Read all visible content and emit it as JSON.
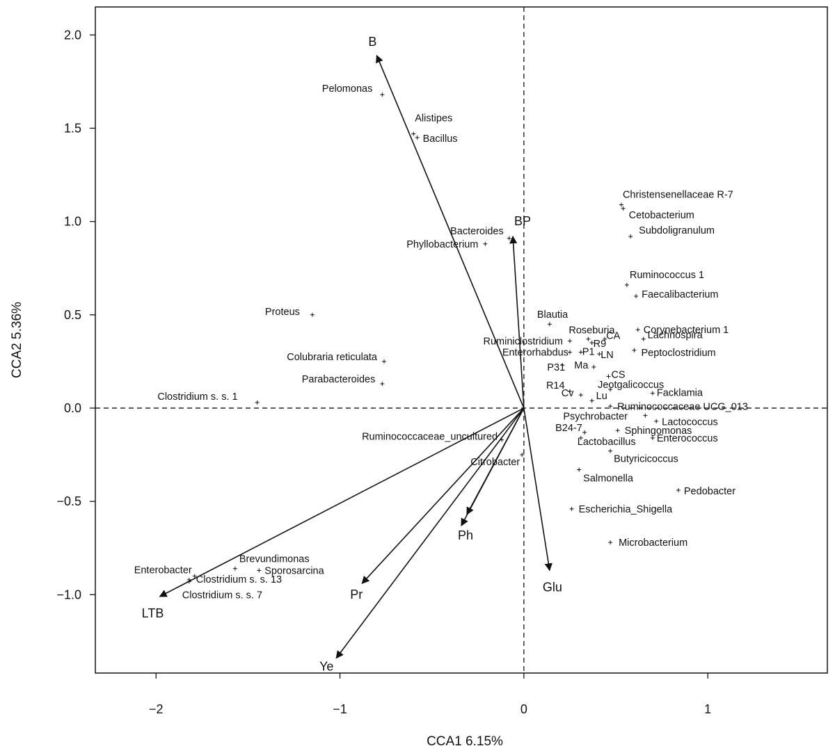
{
  "chart_data": {
    "type": "scatter",
    "title": "",
    "xlabel": "CCA1  6.15%",
    "ylabel": "CCA2  5.36%",
    "xlim": [
      -2.33,
      1.65
    ],
    "ylim": [
      -1.42,
      2.15
    ],
    "xticks": [
      -2,
      -1,
      0,
      1
    ],
    "xtick_labels": [
      "−2",
      "−1",
      "0",
      "1"
    ],
    "yticks": [
      -1.0,
      -0.5,
      0.0,
      0.5,
      1.0,
      1.5,
      2.0
    ],
    "ytick_labels": [
      "−1.0",
      "−0.5",
      "0.0",
      "0.5",
      "1.0",
      "1.5",
      "2.0"
    ],
    "reference_lines": {
      "x": 0,
      "y": 0,
      "style": "dashed"
    },
    "grid": false,
    "environmental_vectors": [
      {
        "label": "B",
        "x": -0.8,
        "y": 1.89
      },
      {
        "label": "BP",
        "x": -0.06,
        "y": 0.92
      },
      {
        "label": "Ph",
        "x": -0.34,
        "y": -0.63
      },
      {
        "label": "Pr",
        "x": -0.88,
        "y": -0.94
      },
      {
        "label": "Ye",
        "x": -1.02,
        "y": -1.34
      },
      {
        "label": "LTB",
        "x": -1.98,
        "y": -1.01
      },
      {
        "label": "Glu",
        "x": 0.14,
        "y": -0.87
      },
      {
        "label": "",
        "x": -0.31,
        "y": -0.57
      }
    ],
    "species": [
      {
        "label": "Pelomonas",
        "x": -0.77,
        "y": 1.68
      },
      {
        "label": "Alistipes",
        "x": -0.6,
        "y": 1.47
      },
      {
        "label": "Bacillus",
        "x": -0.58,
        "y": 1.45
      },
      {
        "label": "Bacteroides",
        "x": -0.08,
        "y": 0.91
      },
      {
        "label": "Phyllobacterium",
        "x": -0.21,
        "y": 0.88
      },
      {
        "label": "Proteus",
        "x": -1.15,
        "y": 0.5
      },
      {
        "label": "Colubraria reticulata",
        "x": -0.76,
        "y": 0.25
      },
      {
        "label": "Parabacteroides",
        "x": -0.77,
        "y": 0.13
      },
      {
        "label": "Clostridium s. s. 1",
        "x": -1.45,
        "y": 0.03
      },
      {
        "label": "Christensenellaceae R-7",
        "x": 0.53,
        "y": 1.09
      },
      {
        "label": "Cetobacterium",
        "x": 0.54,
        "y": 1.07
      },
      {
        "label": "Subdoligranulum",
        "x": 0.58,
        "y": 0.92
      },
      {
        "label": "Ruminococcus 1",
        "x": 0.56,
        "y": 0.66
      },
      {
        "label": "Faecalibacterium",
        "x": 0.61,
        "y": 0.6
      },
      {
        "label": "Blautia",
        "x": 0.14,
        "y": 0.45
      },
      {
        "label": "Corynebacterium 1",
        "x": 0.62,
        "y": 0.42
      },
      {
        "label": "Lachnospira",
        "x": 0.65,
        "y": 0.37
      },
      {
        "label": "Roseburia",
        "x": 0.35,
        "y": 0.37
      },
      {
        "label": "Ruminiclostridium",
        "x": 0.25,
        "y": 0.36
      },
      {
        "label": "Peptoclostridium",
        "x": 0.6,
        "y": 0.31
      },
      {
        "label": "Enterorhabdus",
        "x": 0.25,
        "y": 0.3
      },
      {
        "label": "Jeotgalicoccus",
        "x": 0.47,
        "y": 0.1
      },
      {
        "label": "Facklamia",
        "x": 0.7,
        "y": 0.08
      },
      {
        "label": "Ruminococcaceae UCG_013",
        "x": 0.47,
        "y": 0.01
      },
      {
        "label": "Psychrobacter",
        "x": 0.66,
        "y": -0.04
      },
      {
        "label": "Lactococcus",
        "x": 0.72,
        "y": -0.07
      },
      {
        "label": "Sphingomonas",
        "x": 0.51,
        "y": -0.12
      },
      {
        "label": "Lactobacillus",
        "x": 0.31,
        "y": -0.16
      },
      {
        "label": "Enterococcus",
        "x": 0.7,
        "y": -0.16
      },
      {
        "label": "Ruminococcaceae_uncultured",
        "x": -0.12,
        "y": -0.17
      },
      {
        "label": "Citrobacter",
        "x": -0.01,
        "y": -0.25
      },
      {
        "label": "Butyricicoccus",
        "x": 0.47,
        "y": -0.23
      },
      {
        "label": "Salmonella",
        "x": 0.3,
        "y": -0.33
      },
      {
        "label": "Pedobacter",
        "x": 0.84,
        "y": -0.44
      },
      {
        "label": "Escherichia_Shigella",
        "x": 0.26,
        "y": -0.54
      },
      {
        "label": "Microbacterium",
        "x": 0.47,
        "y": -0.72
      },
      {
        "label": "Enterobacter",
        "x": -1.79,
        "y": -0.9
      },
      {
        "label": "Brevundimonas",
        "x": -1.57,
        "y": -0.86
      },
      {
        "label": "Sporosarcina",
        "x": -1.44,
        "y": -0.87
      },
      {
        "label": "Clostridium s. s. 13",
        "x": -1.82,
        "y": -0.92
      },
      {
        "label": "Clostridium s. s. 7",
        "x": -1.82,
        "y": -0.93
      }
    ],
    "sites": [
      {
        "label": "R9",
        "x": 0.37,
        "y": 0.35
      },
      {
        "label": "CA",
        "x": 0.44,
        "y": 0.37
      },
      {
        "label": "P1",
        "x": 0.31,
        "y": 0.3
      },
      {
        "label": "LN",
        "x": 0.41,
        "y": 0.29
      },
      {
        "label": "P31",
        "x": 0.21,
        "y": 0.23
      },
      {
        "label": "Ma",
        "x": 0.38,
        "y": 0.22
      },
      {
        "label": "CS",
        "x": 0.46,
        "y": 0.17
      },
      {
        "label": "R14",
        "x": 0.25,
        "y": 0.09
      },
      {
        "label": "Cv",
        "x": 0.31,
        "y": 0.07
      },
      {
        "label": "Lu",
        "x": 0.37,
        "y": 0.04
      },
      {
        "label": "B24-7",
        "x": 0.33,
        "y": -0.13
      }
    ]
  }
}
